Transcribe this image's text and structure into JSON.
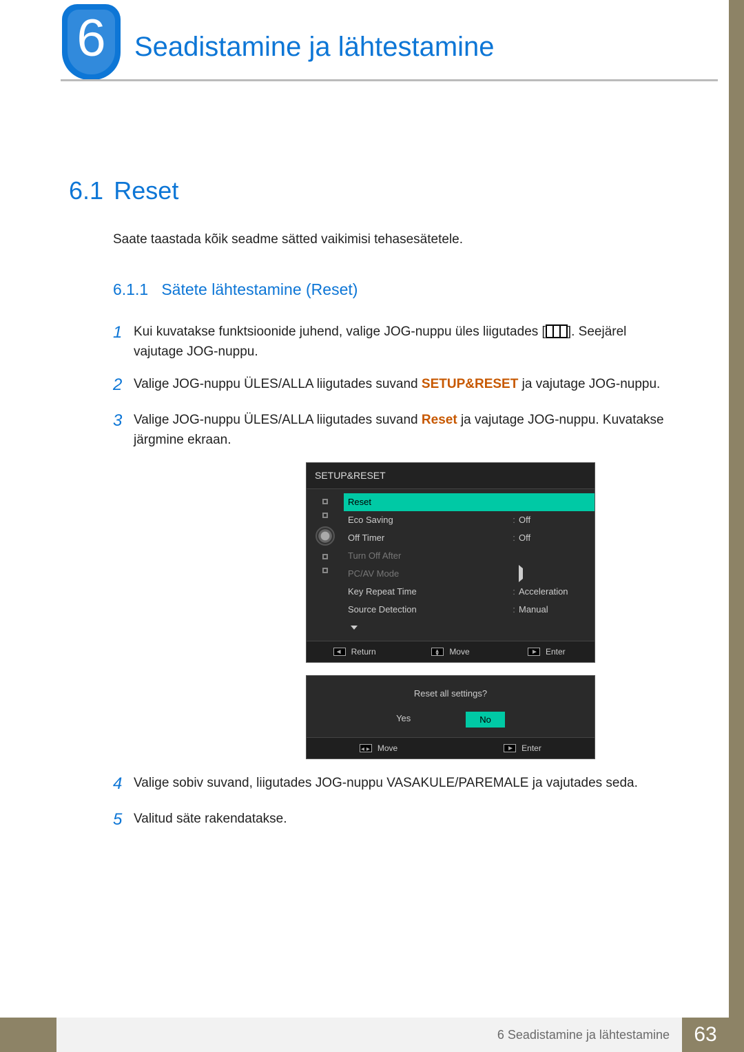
{
  "chapter": {
    "number": "6",
    "title": "Seadistamine ja lähtestamine"
  },
  "section": {
    "number": "6.1",
    "title": "Reset"
  },
  "intro": "Saate taastada kõik seadme sätted vaikimisi tehasesätetele.",
  "subsection": {
    "number": "6.1.1",
    "title": "Sätete lähtestamine (Reset)"
  },
  "steps": {
    "s1": {
      "num": "1",
      "text_a": "Kui kuvatakse funktsioonide juhend, valige JOG-nuppu üles liigutades [",
      "text_b": "]. Seejärel vajutage JOG-nuppu."
    },
    "s2": {
      "num": "2",
      "text_a": "Valige JOG-nuppu ÜLES/ALLA liigutades suvand ",
      "bold": "SETUP&RESET",
      "text_b": " ja vajutage JOG-nuppu."
    },
    "s3": {
      "num": "3",
      "text_a": "Valige JOG-nuppu ÜLES/ALLA liigutades suvand ",
      "bold": "Reset",
      "text_b": " ja vajutage JOG-nuppu. Kuvatakse järgmine ekraan."
    },
    "s4": {
      "num": "4",
      "text": "Valige sobiv suvand, liigutades JOG-nuppu VASAKULE/PAREMALE ja vajutades seda."
    },
    "s5": {
      "num": "5",
      "text": "Valitud säte rakendatakse."
    }
  },
  "osd": {
    "title": "SETUP&RESET",
    "rows": {
      "r0": {
        "label": "Reset",
        "val": ""
      },
      "r1": {
        "label": "Eco Saving",
        "val": "Off"
      },
      "r2": {
        "label": "Off Timer",
        "val": "Off"
      },
      "r3": {
        "label": "Turn Off After",
        "val": ""
      },
      "r4": {
        "label": "PC/AV Mode",
        "val": ""
      },
      "r5": {
        "label": "Key Repeat Time",
        "val": "Acceleration"
      },
      "r6": {
        "label": "Source Detection",
        "val": "Manual"
      }
    },
    "foot": {
      "return": "Return",
      "move": "Move",
      "enter": "Enter"
    }
  },
  "osd2": {
    "question": "Reset all settings?",
    "yes": "Yes",
    "no": "No",
    "move": "Move",
    "enter": "Enter"
  },
  "footer": {
    "text": "6 Seadistamine ja lähtestamine",
    "page": "63"
  }
}
